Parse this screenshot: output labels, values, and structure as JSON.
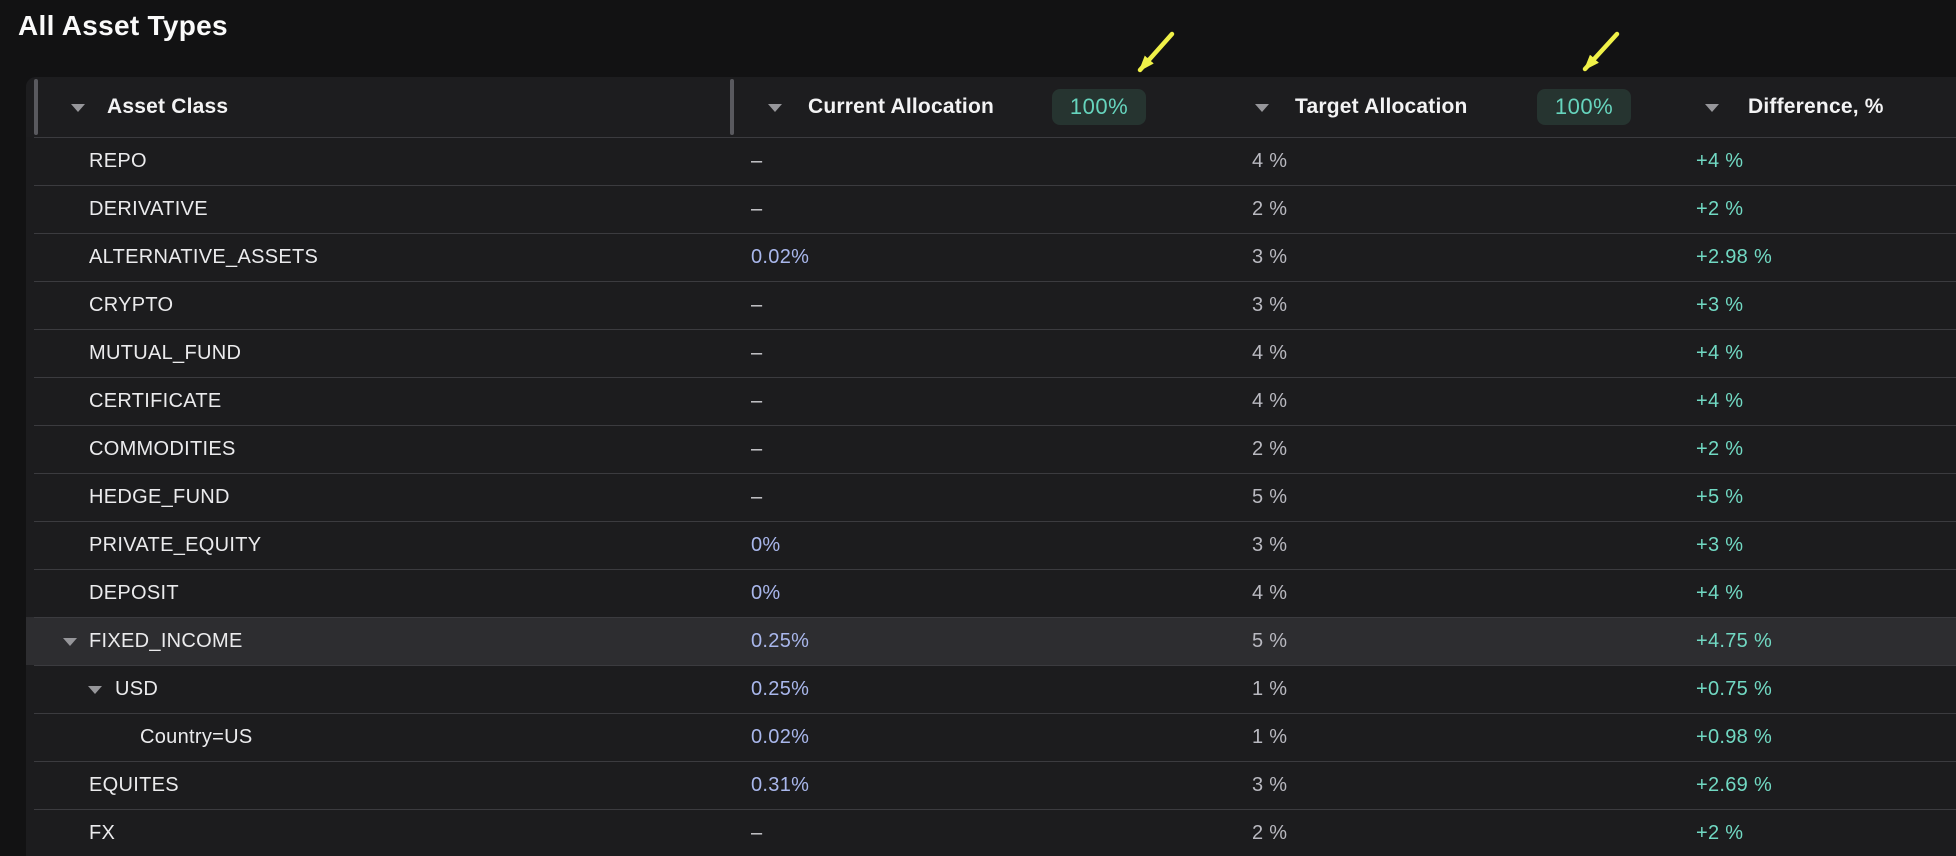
{
  "title": "All Asset Types",
  "header": {
    "asset_class": {
      "label": "Asset Class"
    },
    "current_allocation": {
      "label": "Current Allocation",
      "badge": "100%"
    },
    "target_allocation": {
      "label": "Target Allocation",
      "badge": "100%"
    },
    "difference": {
      "label": "Difference, %"
    }
  },
  "rows": [
    {
      "label": "REPO",
      "level": 0,
      "expandable": false,
      "highlighted": false,
      "current": "–",
      "current_color": "gray",
      "target": "4 %",
      "difference": "+4 %"
    },
    {
      "label": "DERIVATIVE",
      "level": 0,
      "expandable": false,
      "highlighted": false,
      "current": "–",
      "current_color": "gray",
      "target": "2 %",
      "difference": "+2 %"
    },
    {
      "label": "ALTERNATIVE_ASSETS",
      "level": 0,
      "expandable": false,
      "highlighted": false,
      "current": "0.02%",
      "current_color": "blue",
      "target": "3 %",
      "difference": "+2.98 %"
    },
    {
      "label": "CRYPTO",
      "level": 0,
      "expandable": false,
      "highlighted": false,
      "current": "–",
      "current_color": "gray",
      "target": "3 %",
      "difference": "+3 %"
    },
    {
      "label": "MUTUAL_FUND",
      "level": 0,
      "expandable": false,
      "highlighted": false,
      "current": "–",
      "current_color": "gray",
      "target": "4 %",
      "difference": "+4 %"
    },
    {
      "label": "CERTIFICATE",
      "level": 0,
      "expandable": false,
      "highlighted": false,
      "current": "–",
      "current_color": "gray",
      "target": "4 %",
      "difference": "+4 %"
    },
    {
      "label": "COMMODITIES",
      "level": 0,
      "expandable": false,
      "highlighted": false,
      "current": "–",
      "current_color": "gray",
      "target": "2 %",
      "difference": "+2 %"
    },
    {
      "label": "HEDGE_FUND",
      "level": 0,
      "expandable": false,
      "highlighted": false,
      "current": "–",
      "current_color": "gray",
      "target": "5 %",
      "difference": "+5 %"
    },
    {
      "label": "PRIVATE_EQUITY",
      "level": 0,
      "expandable": false,
      "highlighted": false,
      "current": "0%",
      "current_color": "blue",
      "target": "3 %",
      "difference": "+3 %"
    },
    {
      "label": "DEPOSIT",
      "level": 0,
      "expandable": false,
      "highlighted": false,
      "current": "0%",
      "current_color": "blue",
      "target": "4 %",
      "difference": "+4 %"
    },
    {
      "label": "FIXED_INCOME",
      "level": 0,
      "expandable": true,
      "highlighted": true,
      "current": "0.25%",
      "current_color": "blue",
      "target": "5 %",
      "difference": "+4.75 %"
    },
    {
      "label": "USD",
      "level": 1,
      "expandable": true,
      "highlighted": false,
      "current": "0.25%",
      "current_color": "blue",
      "target": "1 %",
      "difference": "+0.75 %"
    },
    {
      "label": "Country=US",
      "level": 2,
      "expandable": false,
      "highlighted": false,
      "current": "0.02%",
      "current_color": "blue",
      "target": "1 %",
      "difference": "+0.98 %"
    },
    {
      "label": "EQUITES",
      "level": 0,
      "expandable": false,
      "highlighted": false,
      "current": "0.31%",
      "current_color": "blue",
      "target": "3 %",
      "difference": "+2.69 %"
    },
    {
      "label": "FX",
      "level": 0,
      "expandable": false,
      "highlighted": false,
      "current": "–",
      "current_color": "gray",
      "target": "2 %",
      "difference": "+2 %"
    }
  ],
  "colors": {
    "accent_teal": "#71d9c3",
    "accent_blue": "#a9b7ec",
    "badge_bg": "#263430",
    "badge_text": "#66d4bd",
    "annotation_yellow": "#f0f148"
  }
}
